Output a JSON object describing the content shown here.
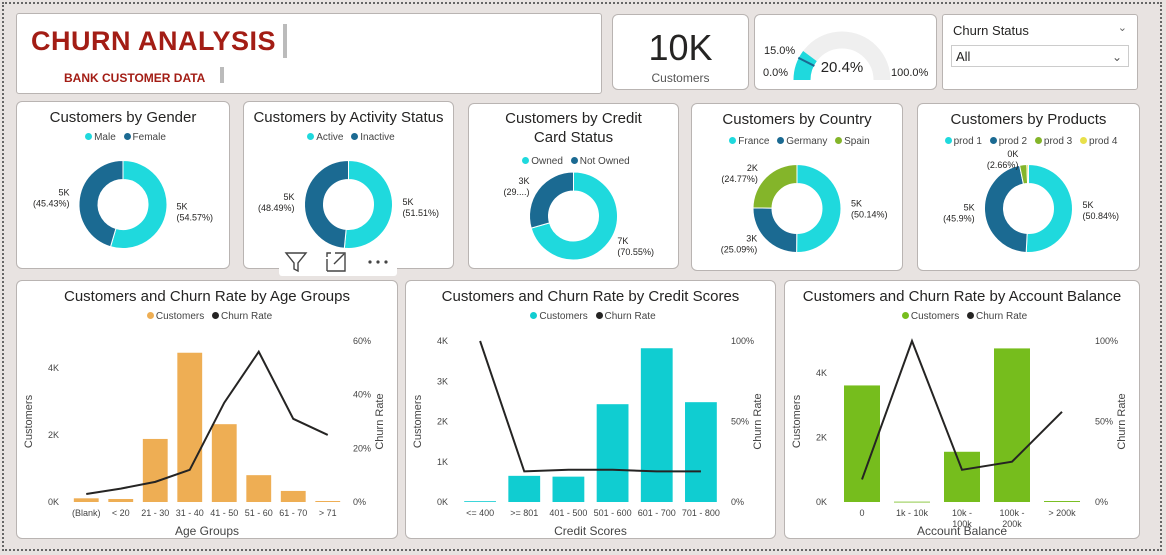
{
  "header": {
    "title": "CHURN ANALYSIS",
    "subtitle": "BANK CUSTOMER DATA"
  },
  "kpi": {
    "value": "10K",
    "label": "Customers"
  },
  "gauge": {
    "value": 20.4,
    "value_label": "20.4%",
    "min_label": "0.0%",
    "max_label": "100.0%",
    "target_label": "15.0%",
    "target": 15.0,
    "max": 100
  },
  "slicer": {
    "title": "Churn Status",
    "selected": "All"
  },
  "visual_header": {
    "filter": "filter-icon",
    "focus": "focus-mode-icon",
    "more": "more-options-icon"
  },
  "colors": {
    "teal": "#1fd9dd",
    "dark_blue": "#1b6a92",
    "green": "#84b52a",
    "yellow": "#e8e04a",
    "orange": "#eeae54",
    "cyan_bar": "#10cdd1",
    "green_bar": "#76bd1d",
    "title_red": "#a31d15"
  },
  "chart_data": [
    {
      "type": "pie",
      "title": "Customers by Gender",
      "categories": [
        "Male",
        "Female"
      ],
      "values": [
        54.57,
        45.43
      ],
      "data_labels": [
        "5K (54.57%)",
        "5K (45.43%)"
      ]
    },
    {
      "type": "pie",
      "title": "Customers by Activity Status",
      "categories": [
        "Active",
        "Inactive"
      ],
      "values": [
        51.51,
        48.49
      ],
      "data_labels": [
        "5K (51.51%)",
        "5K (48.49%)"
      ]
    },
    {
      "type": "pie",
      "title": "Customers by Credit Card Status",
      "categories": [
        "Owned",
        "Not Owned"
      ],
      "values": [
        70.55,
        29.45
      ],
      "data_labels": [
        "7K (70.55%)",
        "3K (29....)"
      ]
    },
    {
      "type": "pie",
      "title": "Customers by Country",
      "categories": [
        "France",
        "Germany",
        "Spain"
      ],
      "values": [
        50.14,
        25.09,
        24.77
      ],
      "data_labels": [
        "5K (50.14%)",
        "3K (25.09%)",
        "2K (24.77%)"
      ]
    },
    {
      "type": "pie",
      "title": "Customers by Products",
      "categories": [
        "prod 1",
        "prod 2",
        "prod 3",
        "prod 4"
      ],
      "values": [
        50.84,
        45.9,
        2.66,
        0.6
      ],
      "data_labels": [
        "5K (50.84%)",
        "5K (45.9%)",
        "0K (2.66%)",
        ""
      ]
    },
    {
      "type": "bar",
      "title": "Customers and Churn Rate by Age Groups",
      "categories": [
        "(Blank)",
        "< 20",
        "21 - 30",
        "31 - 40",
        "41 - 50",
        "51 - 60",
        "61 - 70",
        "> 71"
      ],
      "series": [
        {
          "name": "Customers",
          "values": [
            110,
            90,
            1880,
            4450,
            2320,
            800,
            330,
            30
          ]
        },
        {
          "name": "Churn Rate",
          "values": [
            3,
            5,
            7.5,
            12,
            37,
            56,
            31,
            25
          ]
        }
      ],
      "xlabel": "Age Groups",
      "ylabel": "Customers",
      "y2label": "Churn Rate",
      "yticks": [
        "0K",
        "2K",
        "4K"
      ],
      "y2ticks": [
        "0%",
        "20%",
        "40%",
        "60%"
      ],
      "ylim": [
        0,
        4800
      ],
      "y2lim": [
        0,
        60
      ]
    },
    {
      "type": "bar",
      "title": "Customers and Churn Rate by Credit Scores",
      "categories": [
        "<= 400",
        ">= 801",
        "401 - 500",
        "501 - 600",
        "601 - 700",
        "701 - 800"
      ],
      "series": [
        {
          "name": "Customers",
          "values": [
            20,
            650,
            630,
            2430,
            3820,
            2480
          ]
        },
        {
          "name": "Churn Rate",
          "values": [
            100,
            19,
            20,
            20,
            19,
            19
          ]
        }
      ],
      "xlabel": "Credit Scores",
      "ylabel": "Customers",
      "y2label": "Churn Rate",
      "yticks": [
        "0K",
        "1K",
        "2K",
        "3K",
        "4K"
      ],
      "y2ticks": [
        "0%",
        "50%",
        "100%"
      ],
      "ylim": [
        0,
        4000
      ],
      "y2lim": [
        0,
        100
      ]
    },
    {
      "type": "bar",
      "title": "Customers and Churn Rate by Account Balance",
      "categories": [
        "0",
        "1k - 10k",
        "10k - 100k",
        "100k - 200k",
        "> 200k"
      ],
      "series": [
        {
          "name": "Customers",
          "values": [
            3620,
            10,
            1560,
            4770,
            30
          ]
        },
        {
          "name": "Churn Rate",
          "values": [
            14,
            100,
            20,
            25,
            56
          ]
        }
      ],
      "xlabel": "Account Balance",
      "ylabel": "Customers",
      "y2label": "Churn Rate",
      "yticks": [
        "0K",
        "2K",
        "4K"
      ],
      "y2ticks": [
        "0%",
        "50%",
        "100%"
      ],
      "ylim": [
        0,
        5000
      ],
      "y2lim": [
        0,
        100
      ]
    }
  ]
}
